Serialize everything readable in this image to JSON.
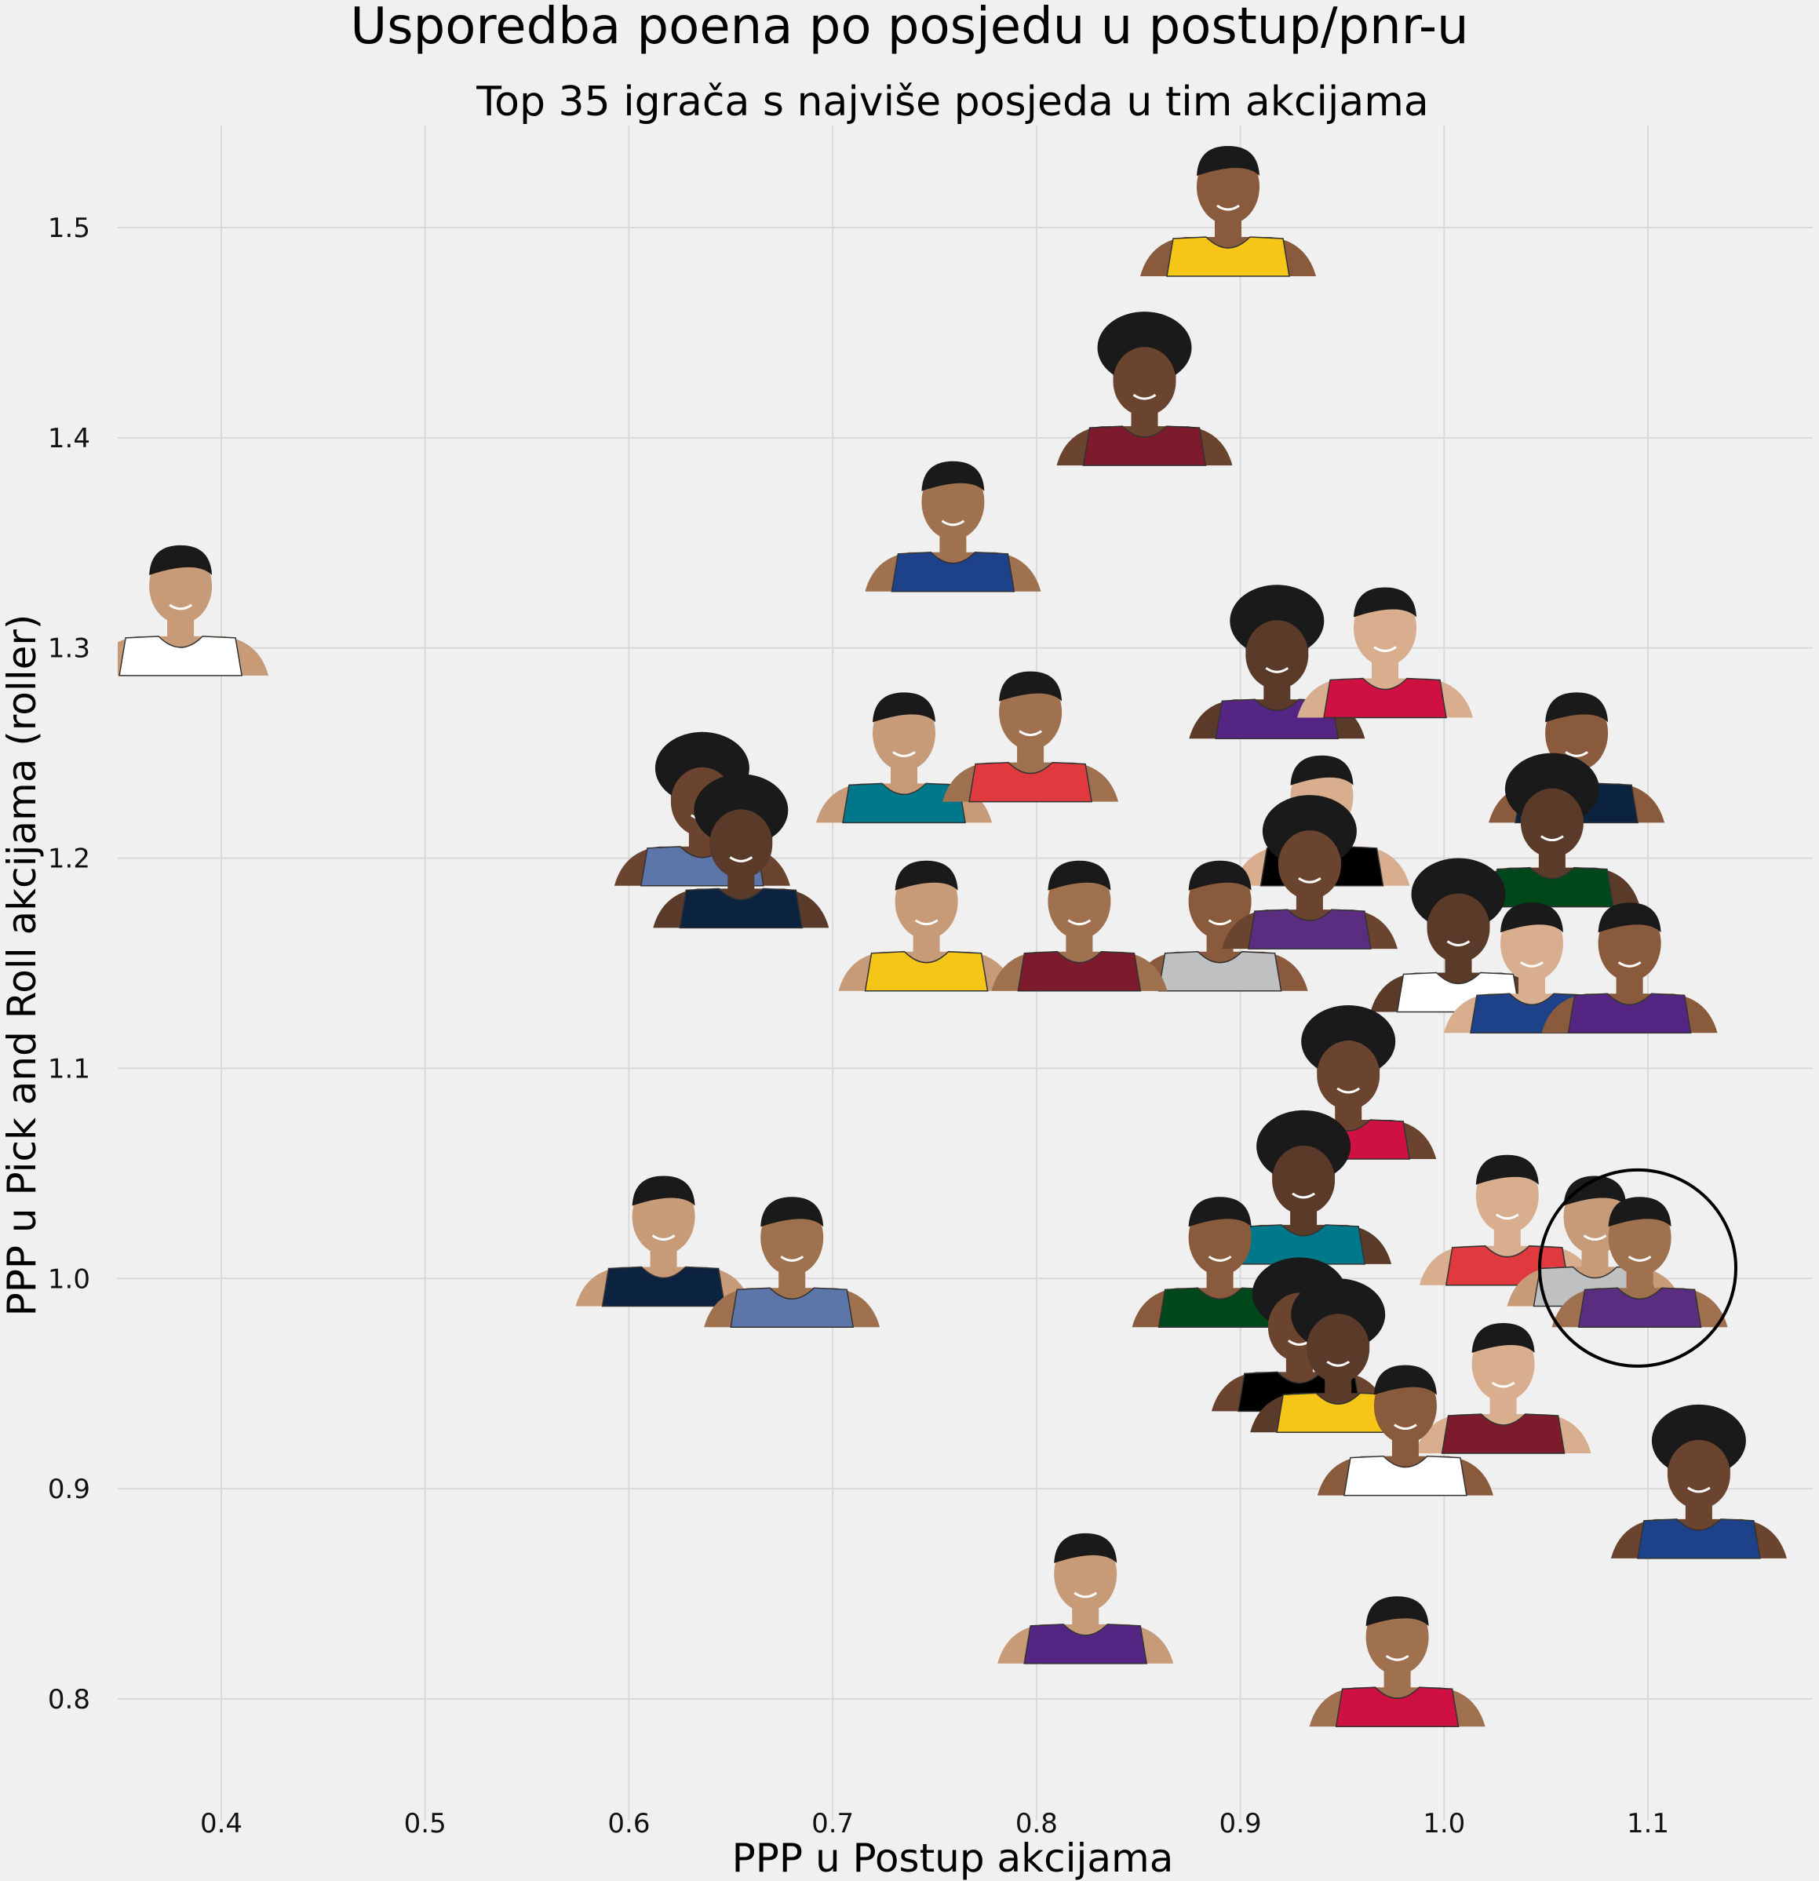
{
  "chart_data": {
    "type": "scatter",
    "title": "Usporedba poena po posjedu u postup/pnr-u",
    "subtitle": "Top 35 igrača s najviše posjeda u tim akcijama",
    "xlabel": "PPP u Postup akcijama",
    "ylabel": "PPP u Pick and Roll akcijama (roller)",
    "xlim": [
      0.34,
      1.185
    ],
    "ylim": [
      0.75,
      1.55
    ],
    "xticks": [
      "0.4",
      "0.5",
      "0.6",
      "0.7",
      "0.8",
      "0.9",
      "1.0",
      "1.1"
    ],
    "yticks": [
      "0.8",
      "0.9",
      "1.0",
      "1.1",
      "1.2",
      "1.3",
      "1.4",
      "1.5"
    ],
    "grid": true,
    "points_note_style": "player headshot images as markers",
    "points": [
      {
        "x": 0.894,
        "y": 1.5
      },
      {
        "x": 0.853,
        "y": 1.41
      },
      {
        "x": 0.38,
        "y": 1.31
      },
      {
        "x": 0.759,
        "y": 1.35
      },
      {
        "x": 0.918,
        "y": 1.28
      },
      {
        "x": 0.971,
        "y": 1.29
      },
      {
        "x": 1.065,
        "y": 1.24
      },
      {
        "x": 0.636,
        "y": 1.21
      },
      {
        "x": 0.735,
        "y": 1.24
      },
      {
        "x": 0.797,
        "y": 1.25
      },
      {
        "x": 1.053,
        "y": 1.2
      },
      {
        "x": 0.94,
        "y": 1.21
      },
      {
        "x": 0.89,
        "y": 1.16
      },
      {
        "x": 0.934,
        "y": 1.18
      },
      {
        "x": 0.746,
        "y": 1.16
      },
      {
        "x": 0.821,
        "y": 1.16
      },
      {
        "x": 1.007,
        "y": 1.15
      },
      {
        "x": 1.043,
        "y": 1.14
      },
      {
        "x": 1.091,
        "y": 1.14
      },
      {
        "x": 0.953,
        "y": 1.08
      },
      {
        "x": 0.617,
        "y": 1.01
      },
      {
        "x": 0.68,
        "y": 1.0
      },
      {
        "x": 0.931,
        "y": 1.03
      },
      {
        "x": 1.031,
        "y": 1.02
      },
      {
        "x": 0.89,
        "y": 1.0
      },
      {
        "x": 0.929,
        "y": 0.96
      },
      {
        "x": 1.074,
        "y": 1.01
      },
      {
        "x": 1.096,
        "y": 1.0
      },
      {
        "x": 0.948,
        "y": 0.95
      },
      {
        "x": 1.029,
        "y": 0.94
      },
      {
        "x": 0.981,
        "y": 0.92
      },
      {
        "x": 1.125,
        "y": 0.89
      },
      {
        "x": 0.824,
        "y": 0.84
      },
      {
        "x": 0.977,
        "y": 0.81
      },
      {
        "x": 0.655,
        "y": 1.19
      }
    ],
    "highlight": {
      "x": 1.095,
      "y": 1.005,
      "shape": "circle"
    },
    "colors": {
      "background": "#f0f0f0",
      "grid": "#d9d9d9",
      "skin": "#8a5a3c",
      "hair": "#1a1a1a",
      "jersey_palette": [
        "#f5c518",
        "#7d1a2b",
        "#ffffff",
        "#1d428a",
        "#552583",
        "#ce1141",
        "#0c2340",
        "#5d76a9",
        "#00788c",
        "#e03a3e",
        "#00471b",
        "#000000",
        "#bec0c2",
        "#5a2d81"
      ]
    }
  }
}
